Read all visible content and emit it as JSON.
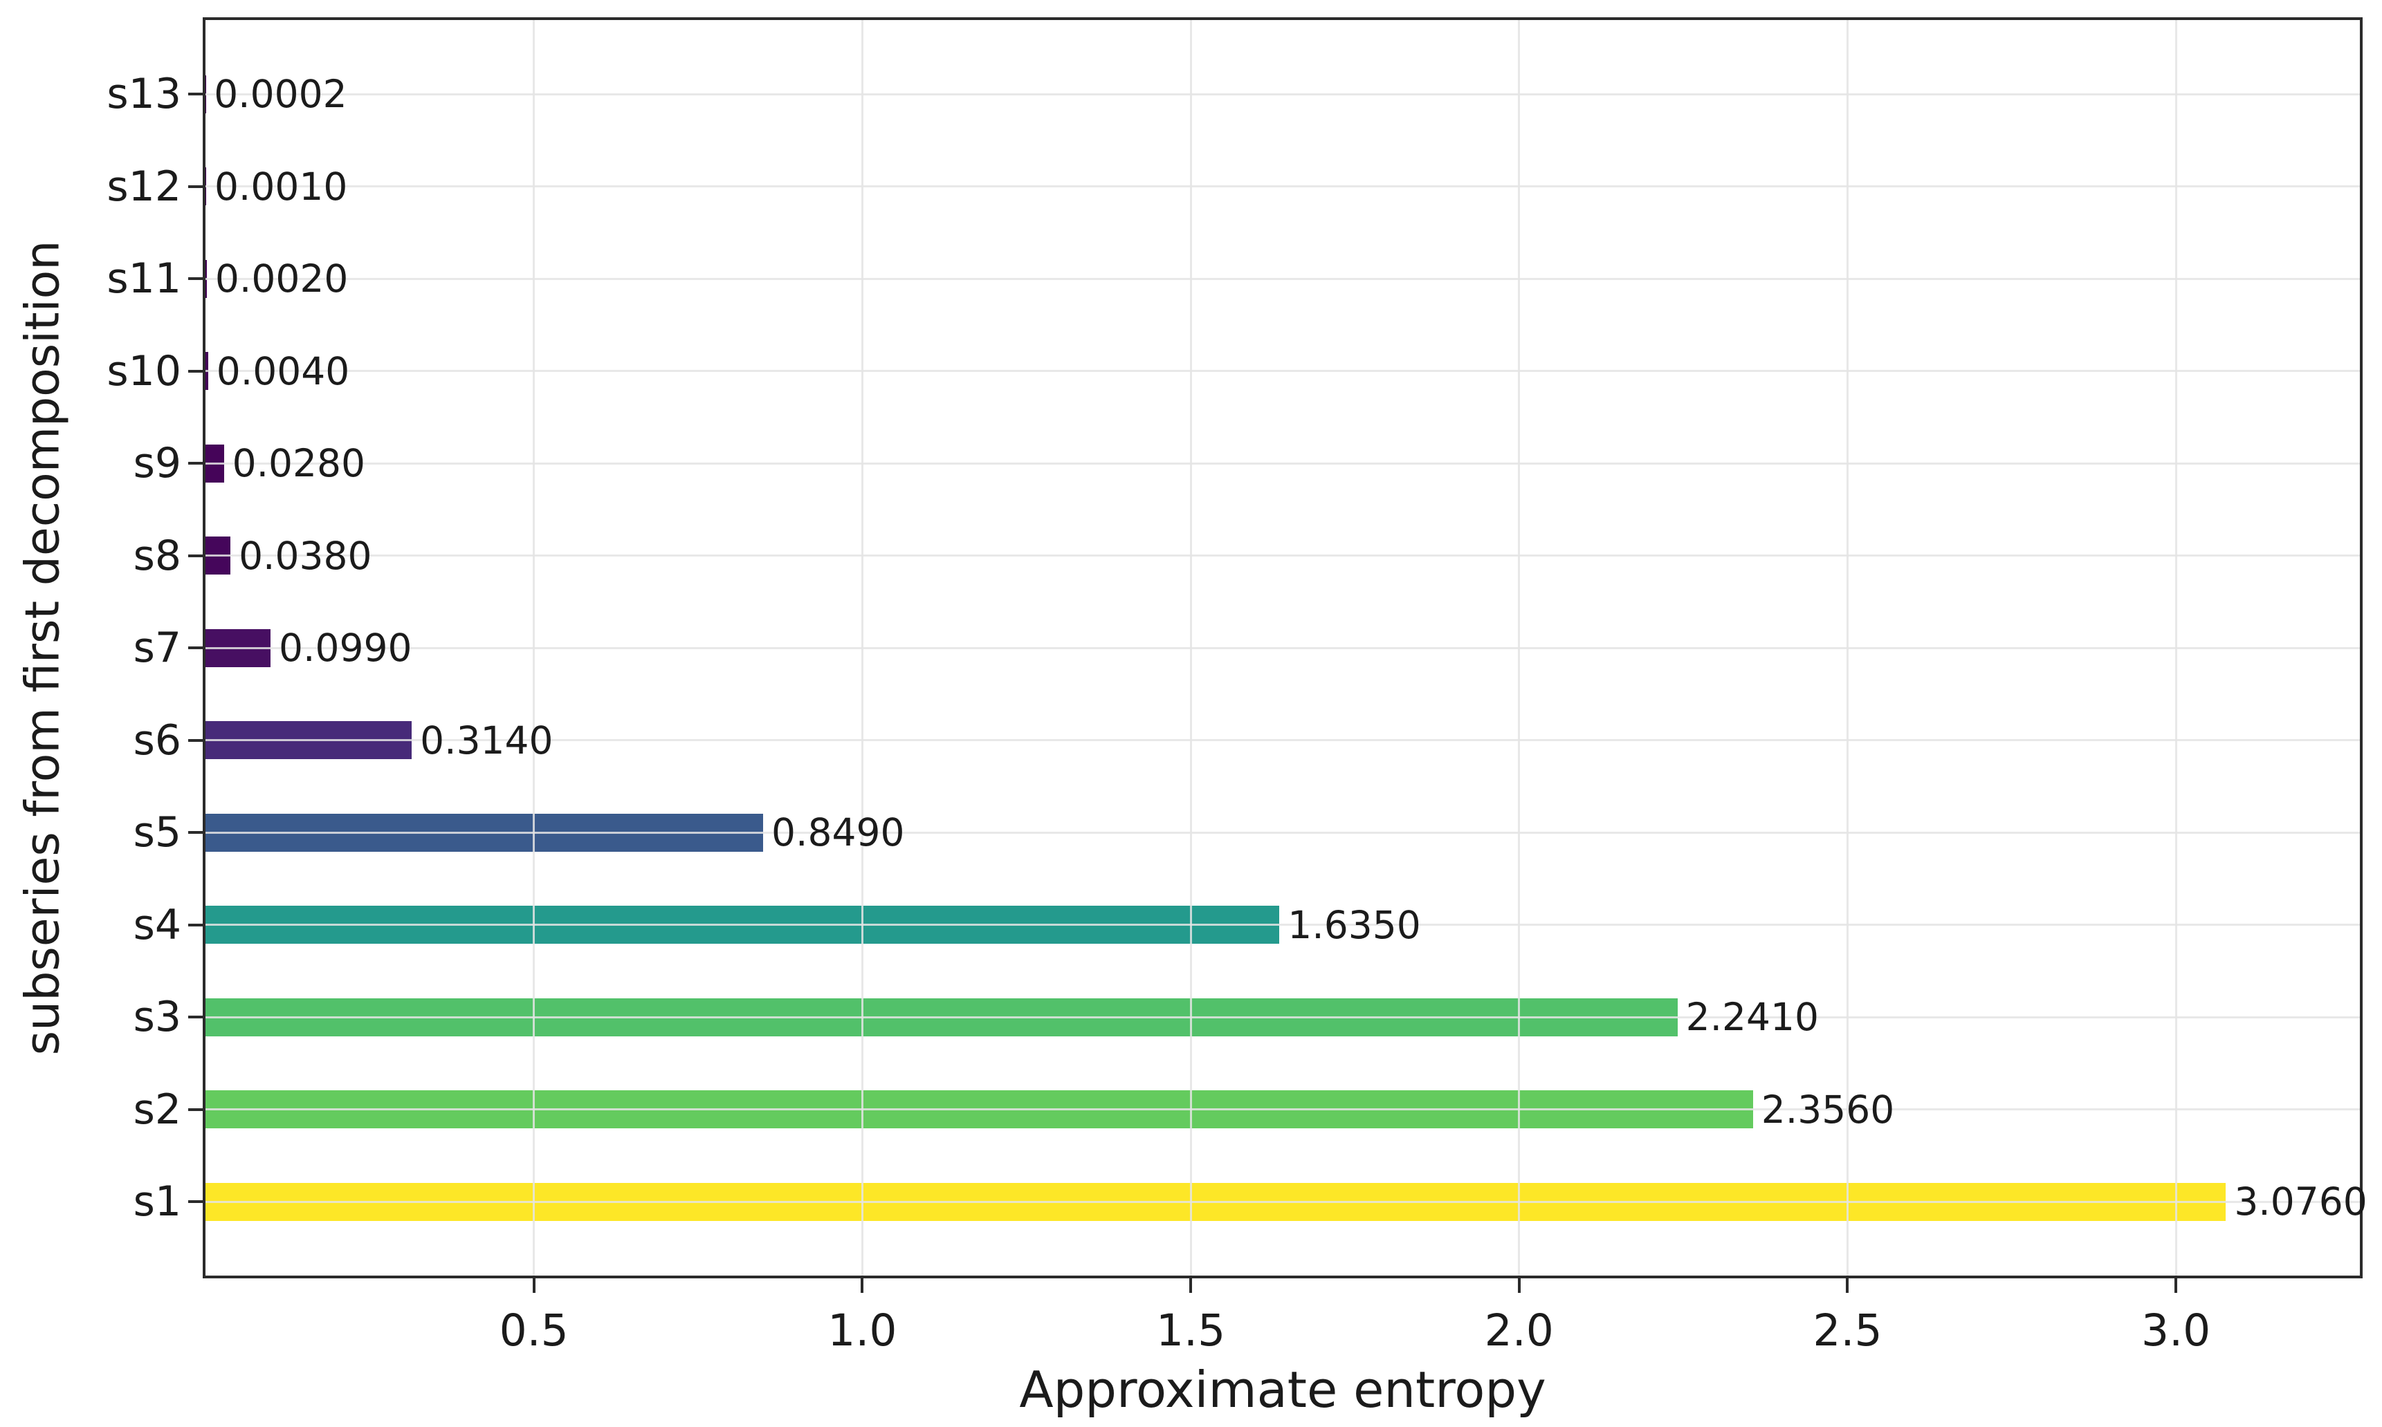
{
  "chart_data": {
    "type": "bar",
    "orientation": "horizontal",
    "xlabel": "Approximate entropy",
    "ylabel": "subseries from first decomposition",
    "categories_top_to_bottom": [
      "s13",
      "s12",
      "s11",
      "s10",
      "s9",
      "s8",
      "s7",
      "s6",
      "s5",
      "s4",
      "s3",
      "s2",
      "s1"
    ],
    "values_top_to_bottom": [
      0.0002,
      0.001,
      0.002,
      0.004,
      0.028,
      0.038,
      0.099,
      0.314,
      0.849,
      1.635,
      2.241,
      2.356,
      3.076
    ],
    "value_labels_top_to_bottom": [
      "0.0002",
      "0.0010",
      "0.0020",
      "0.0040",
      "0.0280",
      "0.0380",
      "0.0990",
      "0.3140",
      "0.8490",
      "1.6350",
      "2.2410",
      "2.3560",
      "3.0760"
    ],
    "bar_colors_top_to_bottom": [
      "#440154",
      "#440155",
      "#440256",
      "#440458",
      "#450459",
      "#45065b",
      "#470f62",
      "#472a79",
      "#3a5a8c",
      "#249a8d",
      "#52c16a",
      "#64cb5e",
      "#fde727"
    ],
    "xticks": [
      0.5,
      1.0,
      1.5,
      2.0,
      2.5,
      3.0
    ],
    "xtick_labels": [
      "0.5",
      "1.0",
      "1.5",
      "2.0",
      "2.5",
      "3.0"
    ],
    "xlim": [
      0,
      3.28
    ],
    "grid": true,
    "legend": "none",
    "title": ""
  },
  "style": {
    "background": "#ffffff",
    "spine_color": "#2b2b2b",
    "grid_color": "#e4e4e4",
    "text_color": "#1b1b1b"
  }
}
